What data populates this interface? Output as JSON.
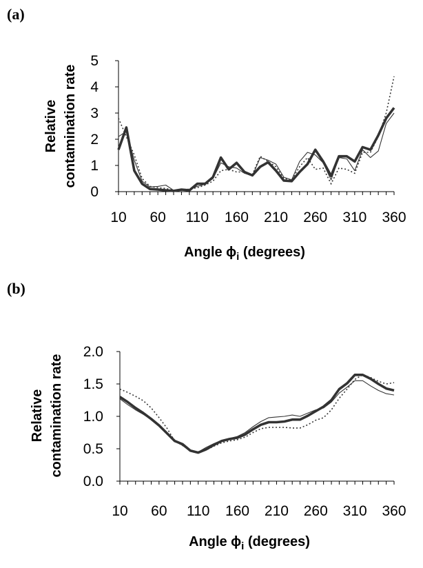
{
  "panels": [
    {
      "label": "(a)"
    },
    {
      "label": "(b)"
    }
  ],
  "chart_data": [
    {
      "type": "line",
      "title": "",
      "xlabel_main": "Angle ϕ",
      "xlabel_sub": "i",
      "xlabel_tail": " (degrees)",
      "ylabel_lines": [
        "Relative",
        "contamination rate"
      ],
      "xlim": [
        10,
        360
      ],
      "ylim": [
        0,
        5
      ],
      "xticks": [
        10,
        60,
        110,
        160,
        210,
        260,
        310,
        360
      ],
      "yticks": [
        "0",
        "1",
        "2",
        "3",
        "4",
        "5"
      ],
      "ytick_values": [
        0,
        1,
        2,
        3,
        4,
        5
      ],
      "grid": false,
      "x": [
        10,
        20,
        30,
        40,
        50,
        60,
        70,
        80,
        90,
        100,
        110,
        120,
        130,
        140,
        150,
        160,
        170,
        180,
        190,
        200,
        210,
        220,
        230,
        240,
        250,
        260,
        270,
        280,
        290,
        300,
        310,
        320,
        330,
        340,
        350,
        360
      ],
      "series": [
        {
          "style": "thick",
          "values": [
            1.6,
            2.45,
            0.8,
            0.3,
            0.1,
            0.08,
            0.05,
            0.03,
            0.08,
            0.05,
            0.3,
            0.3,
            0.55,
            1.3,
            0.85,
            1.1,
            0.75,
            0.62,
            0.95,
            1.12,
            0.8,
            0.42,
            0.4,
            0.75,
            1.05,
            1.6,
            1.15,
            0.6,
            1.35,
            1.35,
            1.15,
            1.7,
            1.6,
            2.15,
            2.8,
            3.2
          ]
        },
        {
          "style": "thin",
          "values": [
            2.1,
            2.3,
            1.2,
            0.4,
            0.18,
            0.2,
            0.25,
            0.05,
            0.1,
            0.08,
            0.2,
            0.28,
            0.5,
            1.1,
            0.95,
            0.9,
            0.7,
            0.6,
            1.3,
            1.2,
            1.05,
            0.55,
            0.45,
            1.15,
            1.5,
            1.4,
            1.1,
            0.45,
            1.3,
            1.25,
            0.8,
            1.6,
            1.3,
            1.55,
            2.6,
            3.0
          ]
        },
        {
          "style": "dotted",
          "values": [
            2.8,
            2.1,
            1.4,
            0.5,
            0.2,
            0.15,
            0.12,
            0.05,
            0.05,
            0.1,
            0.15,
            0.25,
            0.4,
            0.8,
            0.85,
            0.75,
            0.75,
            0.65,
            1.35,
            1.15,
            0.95,
            0.5,
            0.45,
            0.95,
            1.3,
            0.85,
            0.9,
            0.3,
            0.9,
            0.85,
            0.7,
            1.5,
            1.5,
            2.1,
            3.0,
            4.4
          ]
        }
      ]
    },
    {
      "type": "line",
      "title": "",
      "xlabel_main": "Angle ϕ",
      "xlabel_sub": "i",
      "xlabel_tail": " (degrees)",
      "ylabel_lines": [
        "Relative",
        "contamination rate"
      ],
      "xlim": [
        10,
        360
      ],
      "ylim": [
        0,
        2
      ],
      "xticks": [
        10,
        60,
        110,
        160,
        210,
        260,
        310,
        360
      ],
      "yticks": [
        "0.0",
        "0.5",
        "1.0",
        "1.5",
        "2.0"
      ],
      "ytick_values": [
        0,
        0.5,
        1.0,
        1.5,
        2.0
      ],
      "grid": false,
      "x": [
        10,
        20,
        30,
        40,
        50,
        60,
        70,
        80,
        90,
        100,
        110,
        120,
        130,
        140,
        150,
        160,
        170,
        180,
        190,
        200,
        210,
        220,
        230,
        240,
        250,
        260,
        270,
        280,
        290,
        300,
        310,
        320,
        330,
        340,
        350,
        360
      ],
      "series": [
        {
          "style": "thick",
          "values": [
            1.3,
            1.22,
            1.13,
            1.05,
            0.96,
            0.86,
            0.74,
            0.62,
            0.57,
            0.47,
            0.44,
            0.49,
            0.56,
            0.62,
            0.65,
            0.67,
            0.72,
            0.8,
            0.87,
            0.91,
            0.91,
            0.92,
            0.95,
            0.95,
            1.01,
            1.08,
            1.15,
            1.25,
            1.42,
            1.51,
            1.64,
            1.64,
            1.58,
            1.5,
            1.43,
            1.4
          ]
        },
        {
          "style": "thin",
          "values": [
            1.27,
            1.18,
            1.1,
            1.03,
            0.95,
            0.85,
            0.74,
            0.62,
            0.55,
            0.46,
            0.45,
            0.52,
            0.58,
            0.63,
            0.66,
            0.69,
            0.75,
            0.84,
            0.92,
            0.98,
            0.99,
            1.0,
            1.02,
            1.0,
            1.05,
            1.1,
            1.13,
            1.22,
            1.36,
            1.45,
            1.55,
            1.55,
            1.47,
            1.4,
            1.35,
            1.33
          ]
        },
        {
          "style": "dotted",
          "values": [
            1.42,
            1.37,
            1.31,
            1.24,
            1.13,
            0.98,
            0.82,
            0.62,
            0.55,
            0.47,
            0.45,
            0.48,
            0.54,
            0.59,
            0.62,
            0.64,
            0.68,
            0.75,
            0.81,
            0.83,
            0.83,
            0.83,
            0.82,
            0.82,
            0.87,
            0.94,
            0.98,
            1.1,
            1.28,
            1.42,
            1.57,
            1.64,
            1.6,
            1.54,
            1.5,
            1.52
          ]
        }
      ]
    }
  ]
}
